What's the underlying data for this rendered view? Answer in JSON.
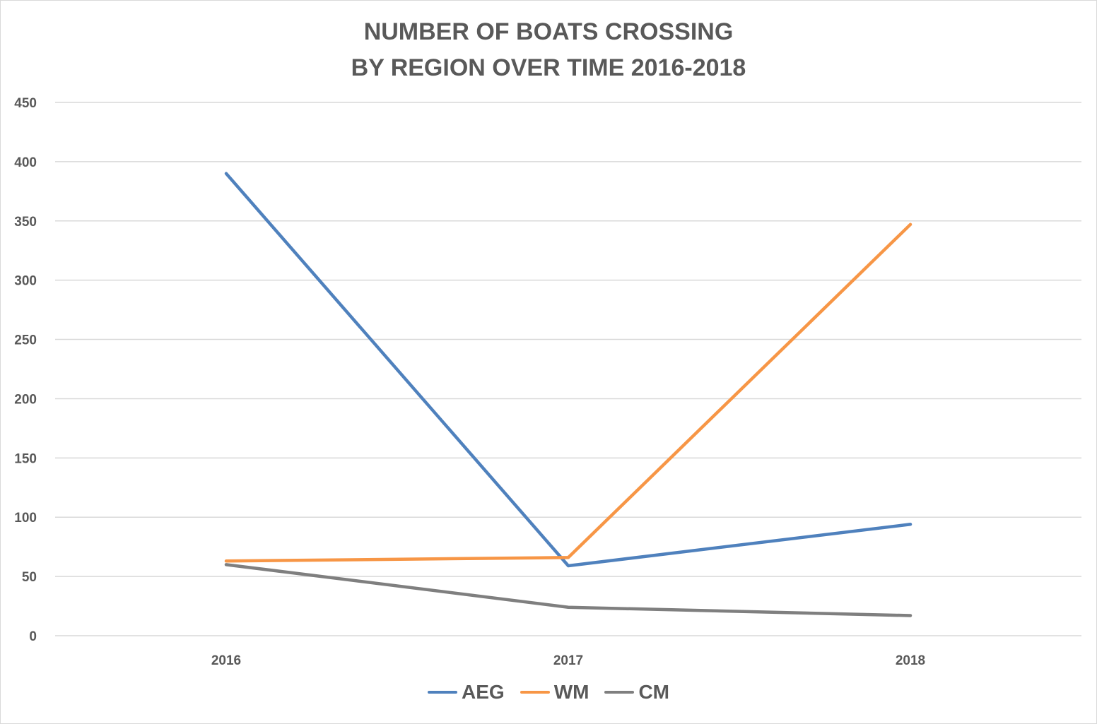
{
  "chart_data": {
    "type": "line",
    "title": [
      "NUMBER OF BOATS CROSSING",
      "BY REGION OVER TIME 2016-2018"
    ],
    "xlabel": "",
    "ylabel": "",
    "categories": [
      "2016",
      "2017",
      "2018"
    ],
    "ylim": [
      0,
      450
    ],
    "yticks": [
      "0",
      "50",
      "100",
      "150",
      "200",
      "250",
      "300",
      "350",
      "400",
      "450"
    ],
    "grid": true,
    "legend_position": "bottom",
    "series": [
      {
        "name": "AEG",
        "color": "#4f81bd",
        "values": [
          390,
          59,
          94
        ]
      },
      {
        "name": "WM",
        "color": "#f79646",
        "values": [
          63,
          66,
          347
        ]
      },
      {
        "name": "CM",
        "color": "#7f7f7f",
        "values": [
          60,
          24,
          17
        ]
      }
    ]
  }
}
